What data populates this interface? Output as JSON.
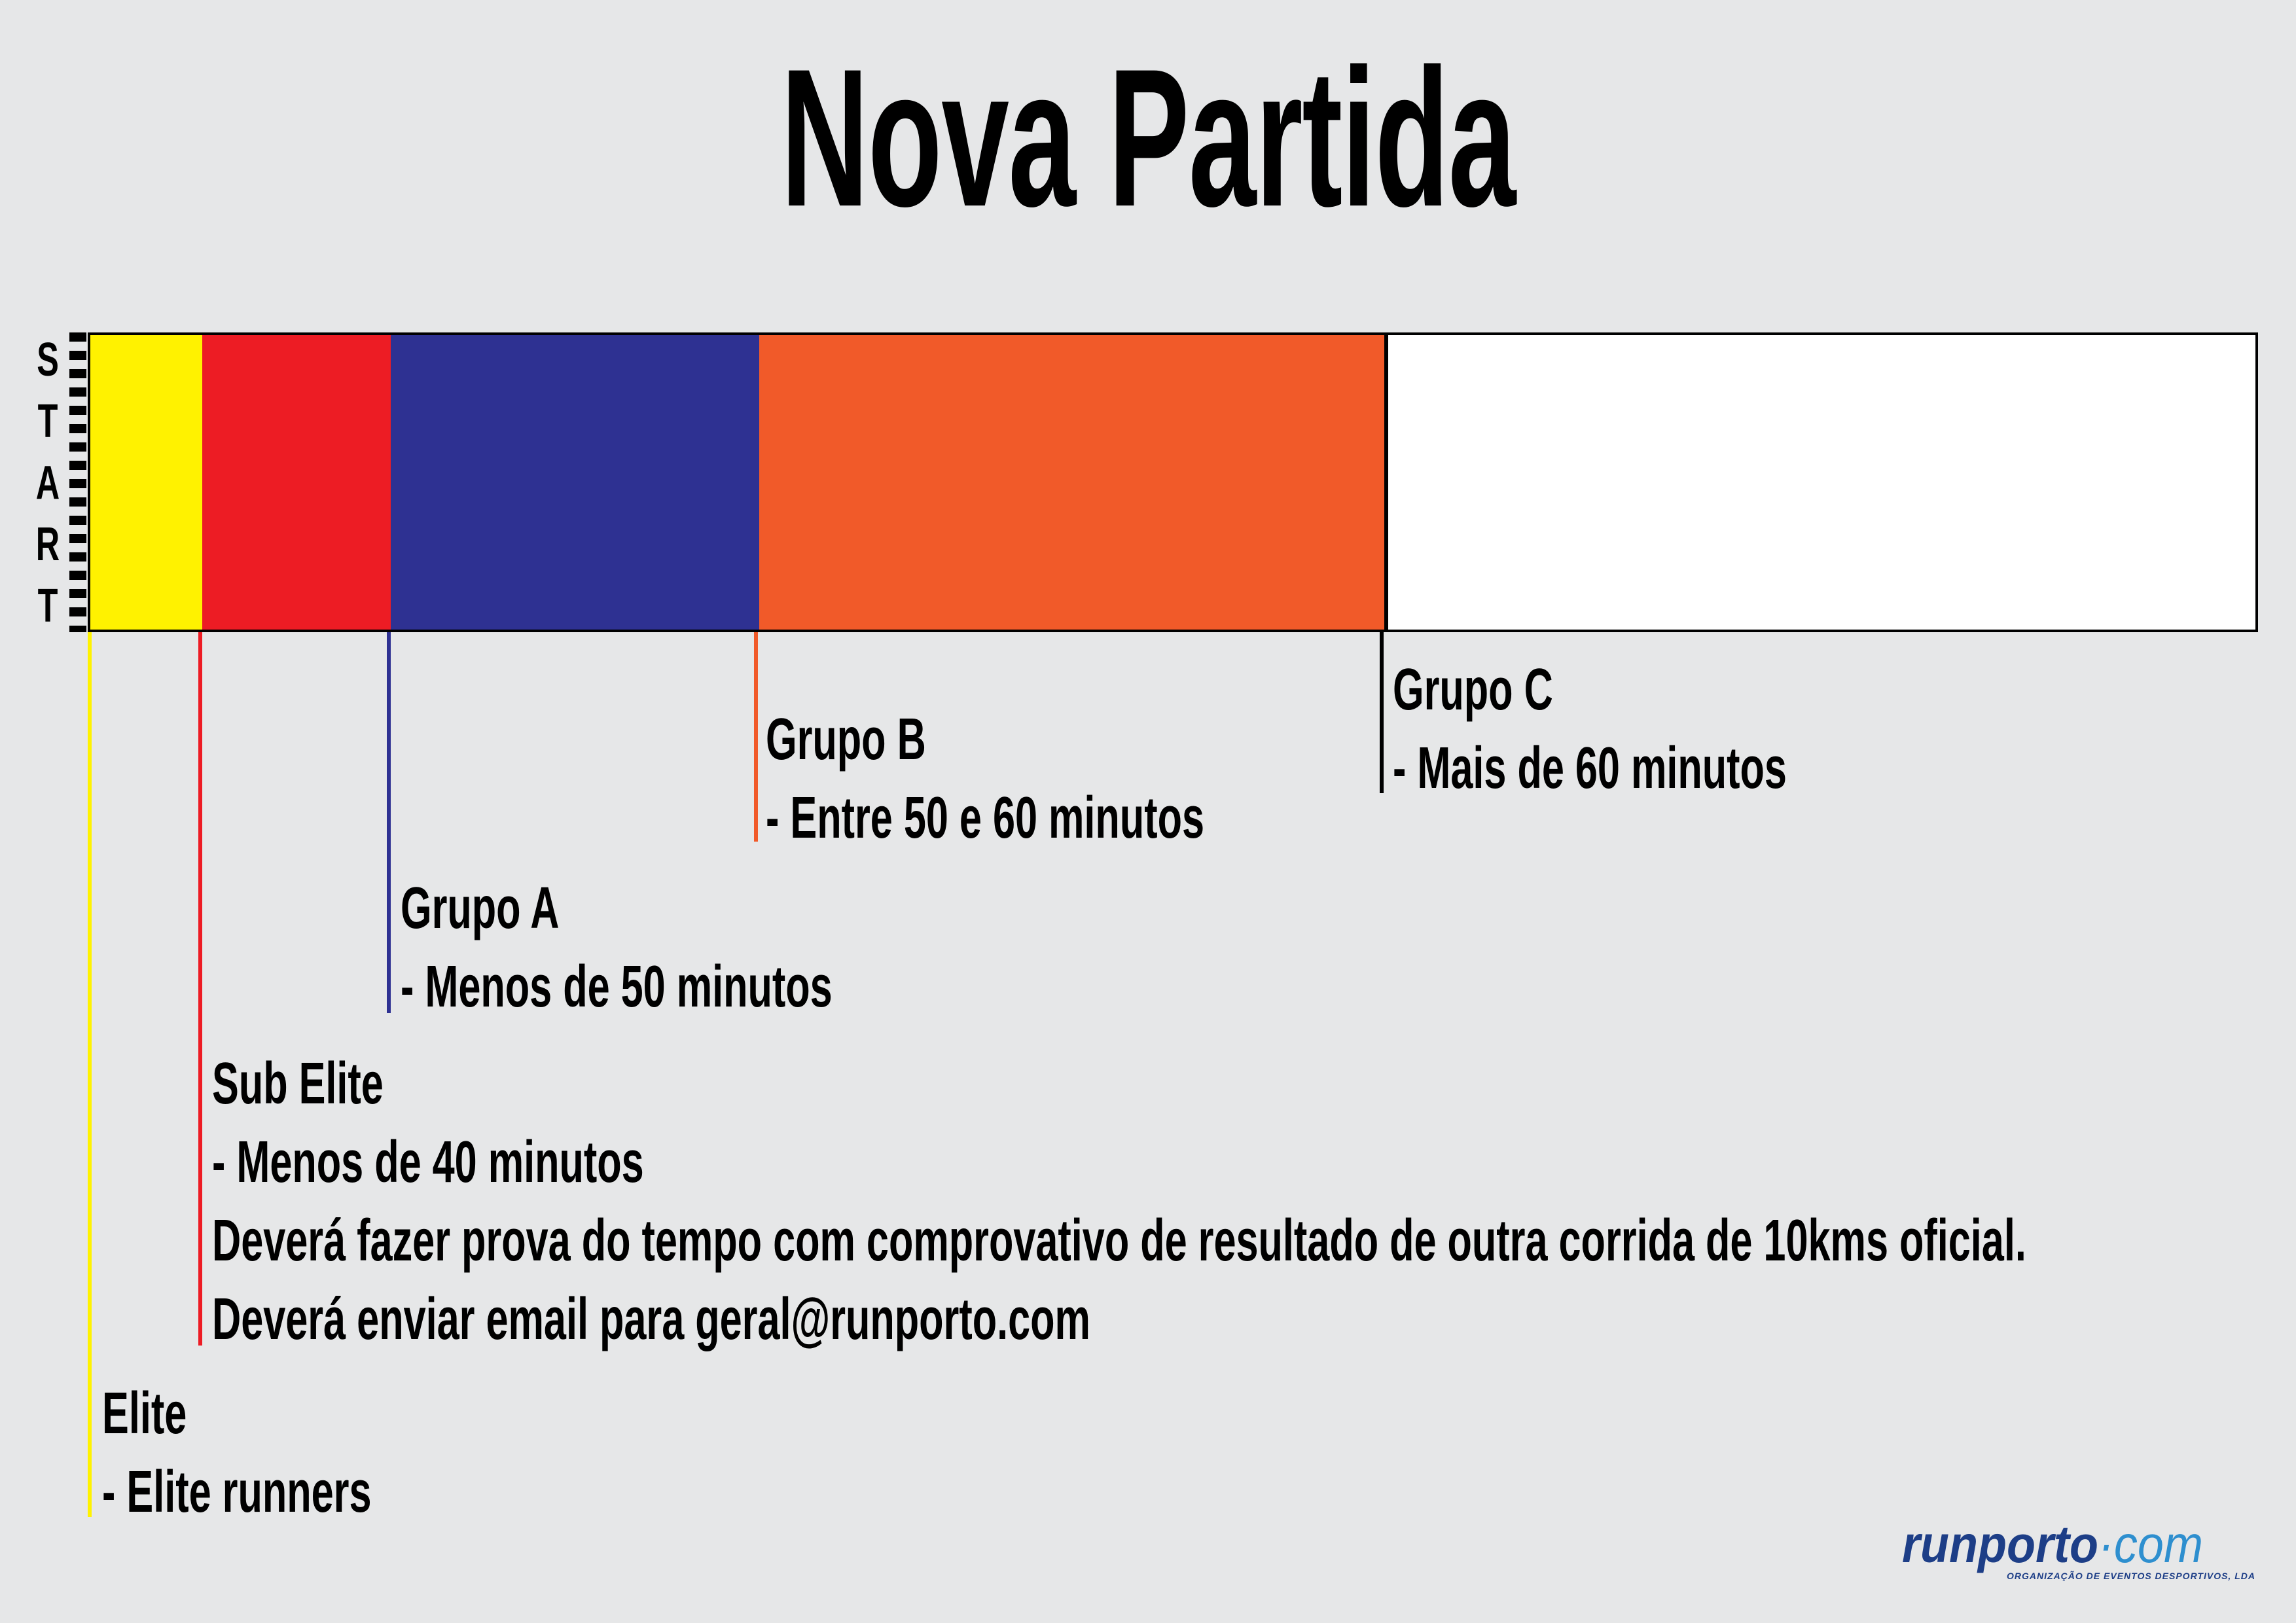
{
  "title": "Nova Partida",
  "start_label": [
    "S",
    "T",
    "A",
    "R",
    "T"
  ],
  "colors": {
    "background": "#e6e7e8",
    "elite": "#fff200",
    "sub_elite": "#ed1c24",
    "grupo_a": "#2e3192",
    "grupo_b": "#f15a29",
    "grupo_c": "#ffffff",
    "logo_blue": "#1d3e87",
    "logo_light_blue": "#2e8fcf"
  },
  "groups": [
    {
      "id": "elite",
      "name": "Elite",
      "lines": [
        "- Elite runners"
      ]
    },
    {
      "id": "sub_elite",
      "name": "Sub Elite",
      "lines": [
        "- Menos de 40 minutos",
        "Deverá fazer prova do tempo com comprovativo de resultado de outra corrida de 10kms oficial.",
        "Deverá enviar email para geral@runporto.com"
      ]
    },
    {
      "id": "grupo_a",
      "name": "Grupo A",
      "lines": [
        "- Menos de 50 minutos"
      ]
    },
    {
      "id": "grupo_b",
      "name": "Grupo B",
      "lines": [
        "- Entre 50 e 60 minutos"
      ]
    },
    {
      "id": "grupo_c",
      "name": "Grupo C",
      "lines": [
        "- Mais de 60 minutos"
      ]
    }
  ],
  "logo": {
    "main": "runporto",
    "dotcom": "·com",
    "tagline": "ORGANIZAÇÃO DE EVENTOS DESPORTIVOS, LDA"
  }
}
